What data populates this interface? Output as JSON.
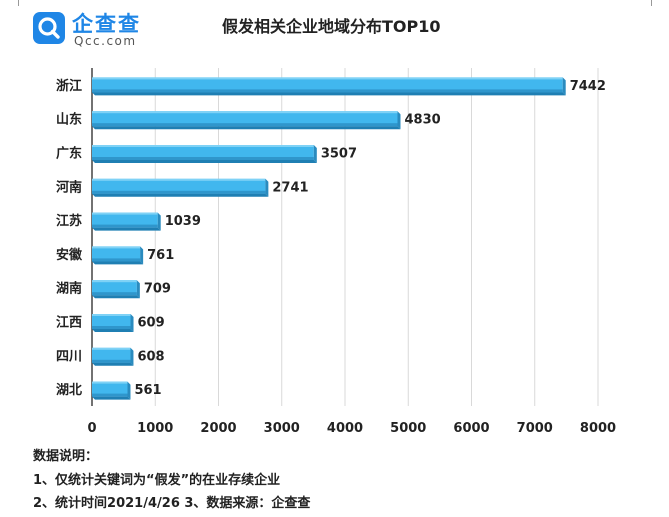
{
  "brand": {
    "name": "企查查",
    "domain": "Qcc.com",
    "icon": "qcc-logo-icon",
    "color": "#1f86e6"
  },
  "chart_data": {
    "type": "bar",
    "orientation": "horizontal",
    "title": "假发相关企业地域分布TOP10",
    "categories": [
      "浙江",
      "山东",
      "广东",
      "河南",
      "江苏",
      "安徽",
      "湖南",
      "江西",
      "四川",
      "湖北"
    ],
    "values": [
      7442,
      4830,
      3507,
      2741,
      1039,
      761,
      709,
      609,
      608,
      561
    ],
    "xlim": [
      0,
      8000
    ],
    "x_ticks": [
      0,
      1000,
      2000,
      3000,
      4000,
      5000,
      6000,
      7000,
      8000
    ],
    "grid": true,
    "legend": "none",
    "bar_color": "#41b7ee",
    "bar_style": "3d"
  },
  "notes": {
    "heading": "数据说明：",
    "line1": "1、仅统计关键词为“假发”的在业存续企业",
    "line2": "2、统计时间2021/4/26   3、数据来源：企查查"
  }
}
